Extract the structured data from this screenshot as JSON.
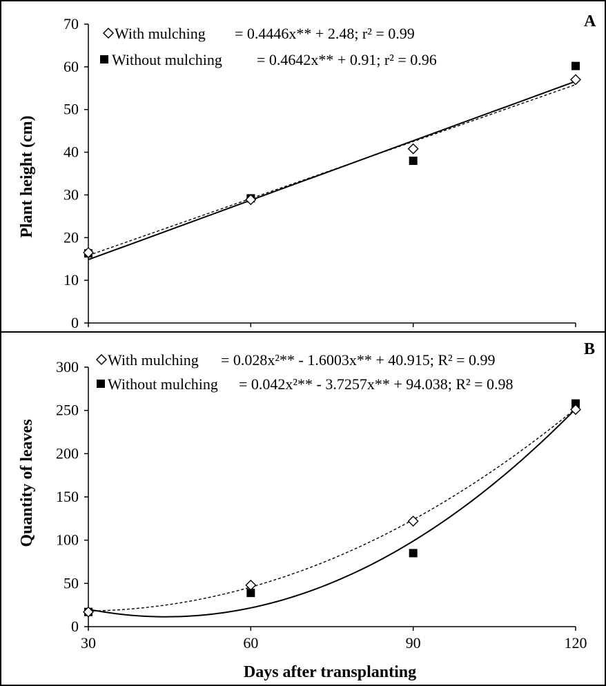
{
  "chart_data": [
    {
      "panel": "A",
      "type": "scatter",
      "xlabel": "",
      "ylabel": "Plant height (cm)",
      "xlim": [
        30,
        120
      ],
      "ylim": [
        0,
        70
      ],
      "yticks": [
        "0",
        "10",
        "20",
        "30",
        "40",
        "50",
        "60",
        "70"
      ],
      "series": [
        {
          "name": "With mulching",
          "marker": "open-diamond",
          "line": "dashed",
          "equation_label": "= 0.4446x** + 2.48; r² = 0.99",
          "x": [
            30,
            60,
            90,
            120
          ],
          "y": [
            16.5,
            28.9,
            40.8,
            57.0
          ],
          "fit": {
            "kind": "linear",
            "coef": [
              2.48,
              0.4446
            ]
          }
        },
        {
          "name": "Without mulching",
          "marker": "filled-square",
          "line": "solid",
          "equation_label": "= 0.4642x** + 0.91; r² = 0.96",
          "x": [
            30,
            60,
            90,
            120
          ],
          "y": [
            16.3,
            29.2,
            38.0,
            60.2
          ],
          "fit": {
            "kind": "linear",
            "coef": [
              0.91,
              0.4642
            ]
          }
        }
      ]
    },
    {
      "panel": "B",
      "type": "scatter",
      "xlabel": "Days after transplanting",
      "ylabel": "Quantity of leaves",
      "xlim": [
        30,
        120
      ],
      "ylim": [
        0,
        300
      ],
      "xticks": [
        "30",
        "60",
        "90",
        "120"
      ],
      "yticks": [
        "0",
        "50",
        "100",
        "150",
        "200",
        "250",
        "300"
      ],
      "series": [
        {
          "name": "With mulching",
          "marker": "open-diamond",
          "line": "dashed",
          "equation_label": "= 0.028x²** - 1.6003x** + 40.915; R² = 0.99",
          "x": [
            30,
            60,
            90,
            120
          ],
          "y": [
            17,
            48,
            122,
            251
          ],
          "fit": {
            "kind": "quadratic",
            "coef": [
              40.915,
              -1.6003,
              0.028
            ]
          }
        },
        {
          "name": "Without mulching",
          "marker": "filled-square",
          "line": "solid",
          "equation_label": "= 0.042x²** - 3.7257x** + 94.038; R² = 0.98",
          "x": [
            30,
            60,
            90,
            120
          ],
          "y": [
            17,
            39,
            85,
            258
          ],
          "fit": {
            "kind": "quadratic",
            "coef": [
              94.038,
              -3.7257,
              0.042
            ]
          }
        }
      ]
    }
  ]
}
